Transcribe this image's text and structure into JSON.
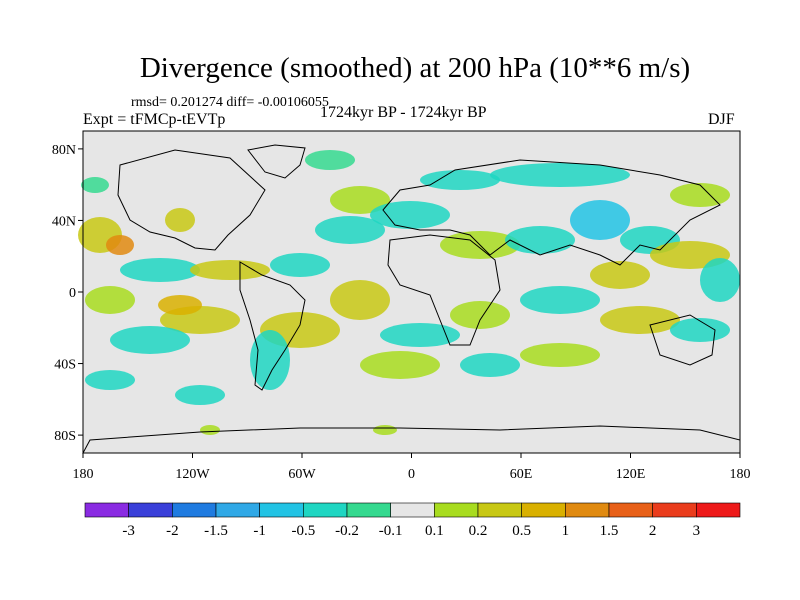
{
  "header": {
    "title": "Divergence (smoothed) at 200 hPa (10**6 m/s)",
    "stats": "rmsd= 0.201274 diff= -0.00106055",
    "experiment": "Expt = tFMCp-tEVTp",
    "period": "1724kyr BP - 1724kyr BP",
    "season": "DJF"
  },
  "map": {
    "lat_ticks": [
      "80N",
      "40N",
      "0",
      "40S",
      "80S"
    ],
    "lat_values": [
      80,
      40,
      0,
      -40,
      -80
    ],
    "lon_ticks": [
      "180",
      "120W",
      "60W",
      "0",
      "60E",
      "120E",
      "180"
    ],
    "lon_values": [
      -180,
      -120,
      -60,
      0,
      60,
      120,
      180
    ],
    "lat_range": [
      -90,
      90
    ],
    "lon_range": [
      -180,
      180
    ]
  },
  "colorbar": {
    "labels": [
      "-3",
      "-2",
      "-1.5",
      "-1",
      "-0.5",
      "-0.2",
      "-0.1",
      "0.1",
      "0.2",
      "0.5",
      "1",
      "1.5",
      "2",
      "3"
    ],
    "colors": [
      "#8a2be2",
      "#3a3fd9",
      "#1f7be0",
      "#2fa8e6",
      "#22c3e4",
      "#1fd6c2",
      "#35d98f",
      "#e6e6e6",
      "#a8dc1f",
      "#c8c814",
      "#d9b000",
      "#e08a10",
      "#e86018",
      "#ea3c1c",
      "#ee1a1a"
    ]
  }
}
